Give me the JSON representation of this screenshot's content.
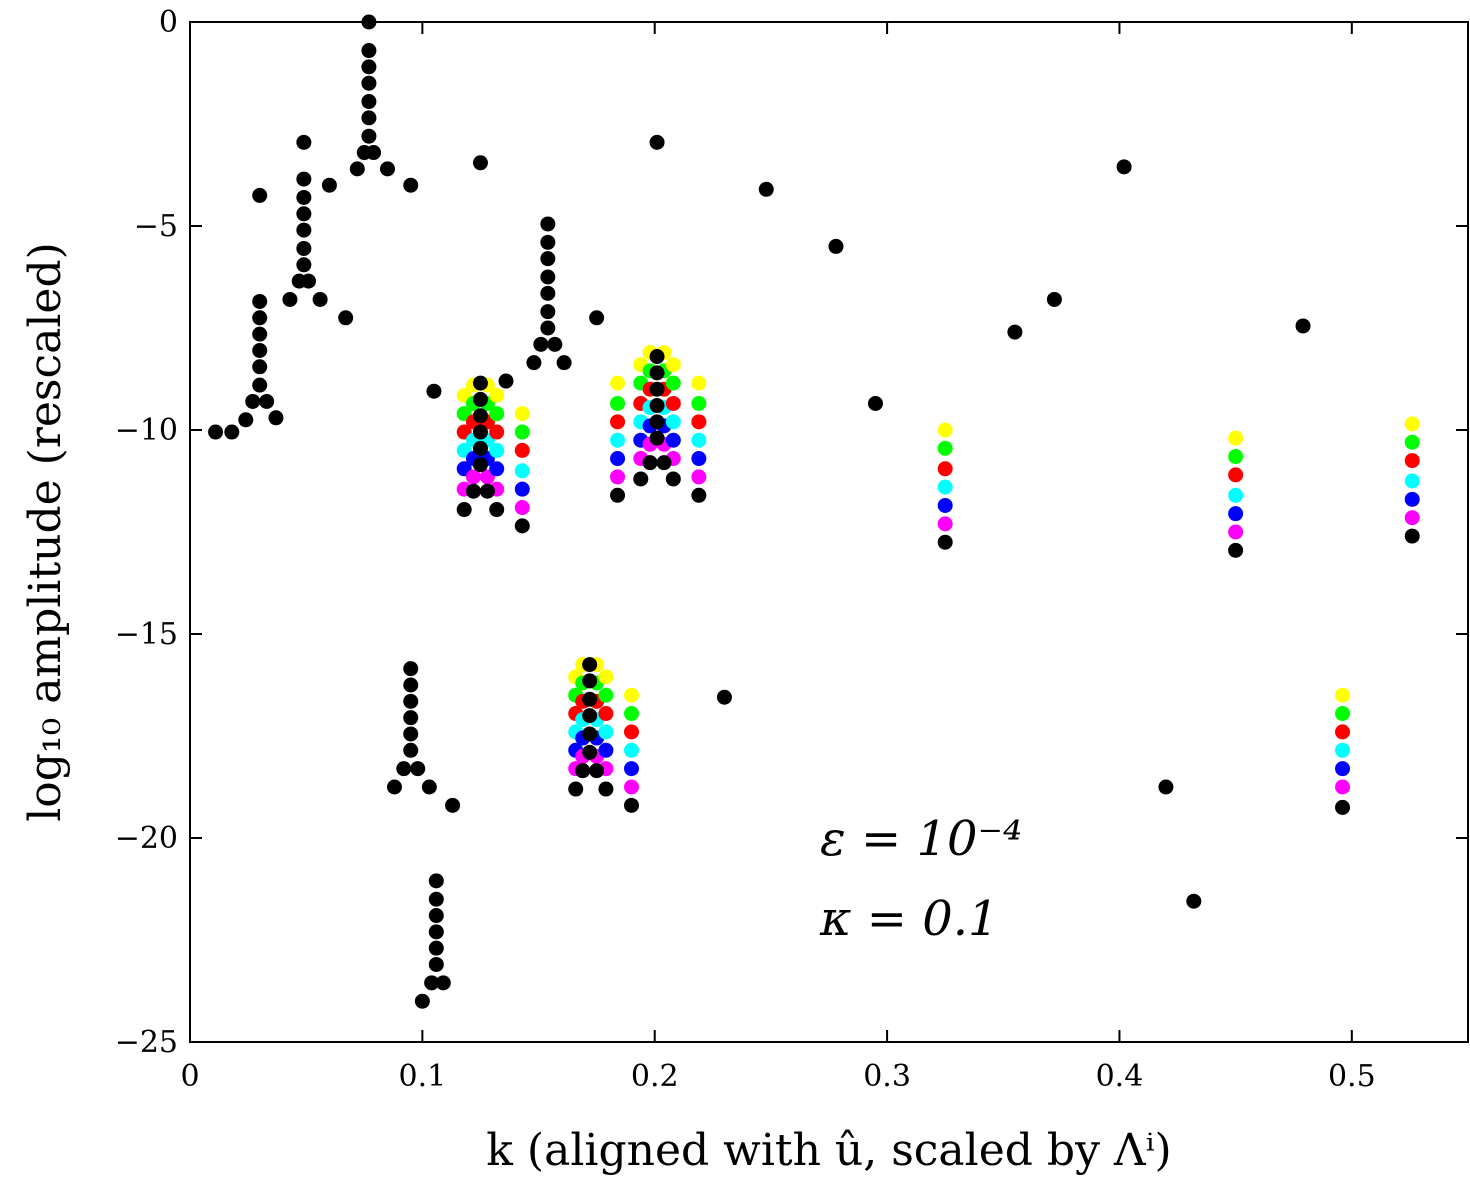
{
  "chart_data": {
    "type": "scatter",
    "xlabel": "k (aligned with û, scaled by Λⁱ)",
    "ylabel": "log₁₀ amplitude (rescaled)",
    "xlim": [
      0,
      0.55
    ],
    "ylim": [
      -25,
      0
    ],
    "xticks": [
      0,
      0.1,
      0.2,
      0.3,
      0.4,
      0.5
    ],
    "xtick_labels": [
      "0",
      "0.1",
      "0.2",
      "0.3",
      "0.4",
      "0.5"
    ],
    "yticks": [
      0,
      -5,
      -10,
      -15,
      -20,
      -25
    ],
    "ytick_labels": [
      "0",
      "−5",
      "−10",
      "−15",
      "−20",
      "−25"
    ],
    "grid": false,
    "annotations": [
      "ε = 10⁻⁴",
      "κ = 0.1"
    ],
    "series_colors": [
      "#ffff00",
      "#00ff00",
      "#ff0000",
      "#00ffff",
      "#0000ff",
      "#ff00ff",
      "#000000"
    ],
    "series": [
      {
        "color": "#000000",
        "points": [
          [
            0.011,
            -10.05
          ],
          [
            0.018,
            -10.05
          ],
          [
            0.024,
            -9.75
          ],
          [
            0.03,
            -4.25
          ],
          [
            0.03,
            -6.85
          ],
          [
            0.03,
            -7.25
          ],
          [
            0.03,
            -7.65
          ],
          [
            0.03,
            -8.05
          ],
          [
            0.03,
            -8.45
          ],
          [
            0.03,
            -8.9
          ],
          [
            0.027,
            -9.3
          ],
          [
            0.033,
            -9.3
          ],
          [
            0.037,
            -9.7
          ],
          [
            0.043,
            -6.8
          ],
          [
            0.047,
            -6.35
          ],
          [
            0.051,
            -6.35
          ],
          [
            0.049,
            -2.95
          ],
          [
            0.049,
            -3.85
          ],
          [
            0.049,
            -4.3
          ],
          [
            0.049,
            -4.7
          ],
          [
            0.049,
            -5.1
          ],
          [
            0.049,
            -5.55
          ],
          [
            0.049,
            -5.95
          ],
          [
            0.056,
            -6.8
          ],
          [
            0.06,
            -4.0
          ],
          [
            0.067,
            -7.25
          ],
          [
            0.072,
            -3.6
          ],
          [
            0.075,
            -3.2
          ],
          [
            0.079,
            -3.2
          ],
          [
            0.077,
            0.0
          ],
          [
            0.077,
            -0.7
          ],
          [
            0.077,
            -1.1
          ],
          [
            0.077,
            -1.5
          ],
          [
            0.077,
            -1.95
          ],
          [
            0.077,
            -2.35
          ],
          [
            0.077,
            -2.8
          ],
          [
            0.085,
            -3.6
          ],
          [
            0.095,
            -4.0
          ],
          [
            0.105,
            -9.05
          ],
          [
            0.125,
            -3.45
          ],
          [
            0.136,
            -8.8
          ],
          [
            0.148,
            -8.35
          ],
          [
            0.151,
            -7.9
          ],
          [
            0.157,
            -7.9
          ],
          [
            0.154,
            -4.95
          ],
          [
            0.154,
            -5.4
          ],
          [
            0.154,
            -5.8
          ],
          [
            0.154,
            -6.25
          ],
          [
            0.154,
            -6.65
          ],
          [
            0.154,
            -7.1
          ],
          [
            0.154,
            -7.5
          ],
          [
            0.161,
            -8.35
          ],
          [
            0.175,
            -7.25
          ],
          [
            0.201,
            -2.95
          ],
          [
            0.248,
            -4.1
          ],
          [
            0.278,
            -5.5
          ],
          [
            0.295,
            -9.35
          ],
          [
            0.355,
            -7.6
          ],
          [
            0.372,
            -6.8
          ],
          [
            0.402,
            -3.55
          ],
          [
            0.479,
            -7.45
          ],
          [
            0.095,
            -15.85
          ],
          [
            0.095,
            -16.25
          ],
          [
            0.095,
            -16.65
          ],
          [
            0.095,
            -17.05
          ],
          [
            0.095,
            -17.45
          ],
          [
            0.095,
            -17.85
          ],
          [
            0.092,
            -18.3
          ],
          [
            0.098,
            -18.3
          ],
          [
            0.088,
            -18.75
          ],
          [
            0.103,
            -18.75
          ],
          [
            0.113,
            -19.2
          ],
          [
            0.106,
            -21.05
          ],
          [
            0.106,
            -21.5
          ],
          [
            0.106,
            -21.9
          ],
          [
            0.106,
            -22.3
          ],
          [
            0.106,
            -22.7
          ],
          [
            0.106,
            -23.1
          ],
          [
            0.104,
            -23.55
          ],
          [
            0.109,
            -23.55
          ],
          [
            0.1,
            -24.0
          ],
          [
            0.23,
            -16.55
          ],
          [
            0.42,
            -18.75
          ],
          [
            0.432,
            -21.55
          ],
          [
            0.125,
            -8.85
          ],
          [
            0.125,
            -9.25
          ],
          [
            0.125,
            -9.65
          ],
          [
            0.125,
            -10.05
          ],
          [
            0.125,
            -10.45
          ],
          [
            0.125,
            -10.85
          ],
          [
            0.122,
            -11.5
          ],
          [
            0.128,
            -11.5
          ],
          [
            0.118,
            -11.95
          ],
          [
            0.132,
            -11.95
          ],
          [
            0.143,
            -12.35
          ],
          [
            0.201,
            -8.2
          ],
          [
            0.201,
            -8.6
          ],
          [
            0.201,
            -9.0
          ],
          [
            0.201,
            -9.4
          ],
          [
            0.201,
            -9.8
          ],
          [
            0.201,
            -10.2
          ],
          [
            0.198,
            -10.8
          ],
          [
            0.204,
            -10.8
          ],
          [
            0.194,
            -11.2
          ],
          [
            0.208,
            -11.2
          ],
          [
            0.184,
            -11.6
          ],
          [
            0.219,
            -11.6
          ],
          [
            0.172,
            -15.75
          ],
          [
            0.172,
            -16.15
          ],
          [
            0.172,
            -16.6
          ],
          [
            0.172,
            -17.0
          ],
          [
            0.172,
            -17.45
          ],
          [
            0.172,
            -17.9
          ],
          [
            0.169,
            -18.35
          ],
          [
            0.175,
            -18.35
          ],
          [
            0.166,
            -18.8
          ],
          [
            0.179,
            -18.8
          ],
          [
            0.19,
            -19.2
          ],
          [
            0.325,
            -12.75
          ],
          [
            0.45,
            -12.95
          ],
          [
            0.496,
            -19.25
          ],
          [
            0.526,
            -12.6
          ]
        ]
      }
    ],
    "vertical_stacks": [
      {
        "x": 0.118,
        "values": [
          -9.15,
          -9.6,
          -10.05,
          -10.5,
          -10.95,
          -11.45
        ]
      },
      {
        "x": 0.122,
        "values": [
          -8.9,
          -9.35,
          -9.8,
          -10.25,
          -10.7,
          -11.15
        ]
      },
      {
        "x": 0.128,
        "values": [
          -8.9,
          -9.35,
          -9.8,
          -10.25,
          -10.7,
          -11.15
        ]
      },
      {
        "x": 0.132,
        "values": [
          -9.15,
          -9.6,
          -10.05,
          -10.5,
          -10.95,
          -11.45
        ]
      },
      {
        "x": 0.143,
        "values": [
          -9.6,
          -10.05,
          -10.5,
          -11.0,
          -11.45,
          -11.9
        ]
      },
      {
        "x": 0.184,
        "values": [
          -8.85,
          -9.35,
          -9.8,
          -10.25,
          -10.7,
          -11.15
        ]
      },
      {
        "x": 0.194,
        "values": [
          -8.4,
          -8.85,
          -9.35,
          -9.8,
          -10.25,
          -10.7
        ]
      },
      {
        "x": 0.198,
        "values": [
          -8.1,
          -8.55,
          -9.0,
          -9.45,
          -9.9,
          -10.35
        ]
      },
      {
        "x": 0.204,
        "values": [
          -8.1,
          -8.55,
          -9.0,
          -9.45,
          -9.9,
          -10.35
        ]
      },
      {
        "x": 0.208,
        "values": [
          -8.4,
          -8.85,
          -9.35,
          -9.8,
          -10.25,
          -10.7
        ]
      },
      {
        "x": 0.219,
        "values": [
          -8.85,
          -9.35,
          -9.8,
          -10.25,
          -10.7,
          -11.15
        ]
      },
      {
        "x": 0.166,
        "values": [
          -16.05,
          -16.5,
          -16.95,
          -17.4,
          -17.85,
          -18.3
        ]
      },
      {
        "x": 0.169,
        "values": [
          -15.75,
          -16.2,
          -16.65,
          -17.1,
          -17.55,
          -18.0
        ]
      },
      {
        "x": 0.175,
        "values": [
          -15.75,
          -16.2,
          -16.65,
          -17.1,
          -17.55,
          -18.0
        ]
      },
      {
        "x": 0.179,
        "values": [
          -16.05,
          -16.5,
          -16.95,
          -17.4,
          -17.85,
          -18.3
        ]
      },
      {
        "x": 0.19,
        "values": [
          -16.5,
          -16.95,
          -17.4,
          -17.85,
          -18.3,
          -18.75
        ]
      },
      {
        "x": 0.325,
        "values": [
          -10.0,
          -10.45,
          -10.95,
          -11.4,
          -11.85,
          -12.3
        ]
      },
      {
        "x": 0.45,
        "values": [
          -10.2,
          -10.65,
          -11.1,
          -11.6,
          -12.05,
          -12.5
        ]
      },
      {
        "x": 0.496,
        "values": [
          -16.5,
          -16.95,
          -17.4,
          -17.85,
          -18.3,
          -18.75
        ]
      },
      {
        "x": 0.526,
        "values": [
          -9.85,
          -10.3,
          -10.75,
          -11.25,
          -11.7,
          -12.15
        ]
      }
    ]
  }
}
